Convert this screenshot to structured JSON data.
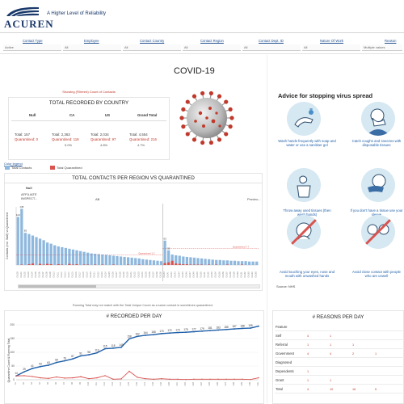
{
  "header": {
    "brand": "ACUREN",
    "tagline": "A Higher Level of Reliability"
  },
  "filters": [
    {
      "label": "Contact Type",
      "value": "Active"
    },
    {
      "label": "Employee",
      "value": "All"
    },
    {
      "label": "Contact Country",
      "value": "All"
    },
    {
      "label": "Contact Region",
      "value": "All"
    },
    {
      "label": "Contact Dept. ID",
      "value": "All"
    },
    {
      "label": "Nature Of Work",
      "value": "All"
    },
    {
      "label": "Reason",
      "value": "Multiple values"
    }
  ],
  "page": {
    "title": "COVID-19",
    "showing_note": "Showing (Filtered) Count of Contacts"
  },
  "totals": {
    "title": "TOTAL RECORDED BY COUNTRY",
    "columns": [
      "Null",
      "CA",
      "US",
      "Grand Total"
    ],
    "rows": [
      {
        "total": "Total: 157",
        "quarantined": "Quarantined: 0",
        "pct": ""
      },
      {
        "total": "Total: 2,363",
        "quarantined": "Quarantined: 118",
        "pct": "5.0%"
      },
      {
        "total": "Total: 2,034",
        "quarantined": "Quarantined: 97",
        "pct": "4.8%"
      },
      {
        "total": "Total: 4,554",
        "quarantined": "Quarantined: 216",
        "pct": "4.7%"
      }
    ]
  },
  "legend": {
    "title": "Color legend",
    "items": [
      {
        "label": "Total Contacts",
        "color": "#8fb8de"
      },
      {
        "label": "Total Quarantined",
        "color": "#d9534f"
      }
    ]
  },
  "contacts_chart": {
    "title": "TOTAL CONTACTS PER REGION VS QUARANTINED",
    "ylabel": "Contacts (incl. Staff) vs Quarantined",
    "group_labels": [
      "Null",
      "AB"
    ],
    "sub_label": "AFFILIATE INSPECT...",
    "partial_label": "Provinc...",
    "ref_label": "Quarantined",
    "ref_values": [
      "1.2",
      "7.7"
    ]
  },
  "chart_data": [
    {
      "type": "bar",
      "title": "TOTAL CONTACTS PER REGION VS QUARANTINED",
      "ylabel": "Contacts (incl. Staff) vs Quarantined",
      "series": [
        {
          "name": "Total Contacts",
          "values": [
            124,
            145,
            83,
            80,
            76,
            72,
            68,
            64,
            58,
            55,
            51,
            48,
            46,
            44,
            42,
            40,
            38,
            36,
            34,
            32,
            30,
            29,
            28,
            27,
            26,
            25,
            24,
            23,
            22,
            21,
            20,
            19,
            18,
            17,
            15,
            14,
            13,
            12,
            11,
            10,
            63,
            38,
            27,
            25,
            24,
            22,
            21,
            20,
            19,
            18,
            17,
            16,
            15,
            14,
            13,
            13,
            12,
            12,
            11,
            11,
            10,
            10,
            10,
            9,
            9,
            9
          ]
        },
        {
          "name": "Total Quarantined",
          "values": [
            0,
            1,
            0,
            2,
            4,
            0,
            3,
            1,
            3,
            2,
            0,
            2,
            1,
            0,
            3,
            1,
            2,
            0,
            1,
            1,
            0,
            1,
            0,
            1,
            0,
            0,
            1,
            0,
            0,
            0,
            1,
            0,
            0,
            1,
            0,
            0,
            0,
            0,
            0,
            0,
            5,
            7,
            11,
            4,
            3,
            2,
            2,
            1,
            1,
            1,
            1,
            0,
            1,
            0,
            1,
            0,
            0,
            1,
            0,
            0,
            0,
            1,
            0,
            0,
            0,
            0
          ]
        }
      ],
      "data_labels": [
        "145",
        "124",
        "83",
        "63",
        "38"
      ]
    },
    {
      "type": "line",
      "title": "# RECORDED PER DAY",
      "ylabel": "Quarantine Count & Running Total",
      "ylim": [
        0,
        200
      ],
      "yticks": [
        0,
        50,
        100,
        150,
        200
      ],
      "series": [
        {
          "name": "Running Total",
          "values": [
            14,
            29,
            41,
            48,
            53,
            63,
            69,
            76,
            87,
            91,
            98,
            113,
            115,
            118,
            149,
            158,
            162,
            164,
            168,
            170,
            172,
            173,
            175,
            177,
            179,
            181,
            183,
            185,
            187,
            188,
            195
          ]
        },
        {
          "name": "Quarantine Count",
          "values": [
            14,
            15,
            12,
            7,
            5,
            10,
            6,
            7,
            11,
            4,
            7,
            15,
            2,
            3,
            31,
            9,
            4,
            2,
            4,
            2,
            2,
            1,
            2,
            2,
            2,
            2,
            2,
            2,
            2,
            1,
            7
          ]
        }
      ],
      "data_labels": [
        "14",
        "29",
        "41",
        "53",
        "63",
        "69",
        "76",
        "87",
        "91",
        "98",
        "113",
        "115",
        "118",
        "149",
        "158",
        "162",
        "164",
        "168",
        "170",
        "172",
        "173",
        "175",
        "177",
        "179",
        "181",
        "183",
        "185",
        "187",
        "188",
        "195"
      ]
    }
  ],
  "advice": {
    "title": "Advice for stopping virus spread",
    "items": [
      "Wash hands frequently with soap and water or use a sanitiser gel",
      "Catch coughs and sneezes with disposable tissues",
      "Throw away used tissues (then wash hands)",
      "If you don't have a tissue use your sleeve",
      "Avoid touching your eyes, nose and mouth with unwashed hands",
      "Avoid close contact with people who are unwell"
    ],
    "source": "Source: NHS"
  },
  "running_note": "Running Total may not match with the Total Unique Count as a same contact is sometimes quarantined.",
  "per_day": {
    "title": "# RECORDED PER DAY",
    "ylabel": "Quarantine Count & Running Total"
  },
  "reasons": {
    "title": "# REASONS PER DAY",
    "rows": [
      {
        "label": "Feature",
        "values": []
      },
      {
        "label": "Self",
        "values": [
          "4",
          "1"
        ]
      },
      {
        "label": "Referral",
        "values": [
          "1",
          "1",
          "1"
        ]
      },
      {
        "label": "Government",
        "values": [
          "4",
          "4",
          "2",
          "1"
        ]
      },
      {
        "label": "Diagnosed",
        "values": []
      },
      {
        "label": "Dependents",
        "values": [
          "1"
        ]
      },
      {
        "label": "Grant",
        "values": [
          "1",
          "1"
        ]
      },
      {
        "label": "Total",
        "values": [
          "4",
          "10",
          "16",
          "5"
        ]
      }
    ]
  },
  "colors": {
    "brand": "#1b3a6b",
    "bar": "#8fb8de",
    "quarantine": "#d9534f",
    "line": "#1f5fa8",
    "advice_text": "#1f5fa8"
  }
}
